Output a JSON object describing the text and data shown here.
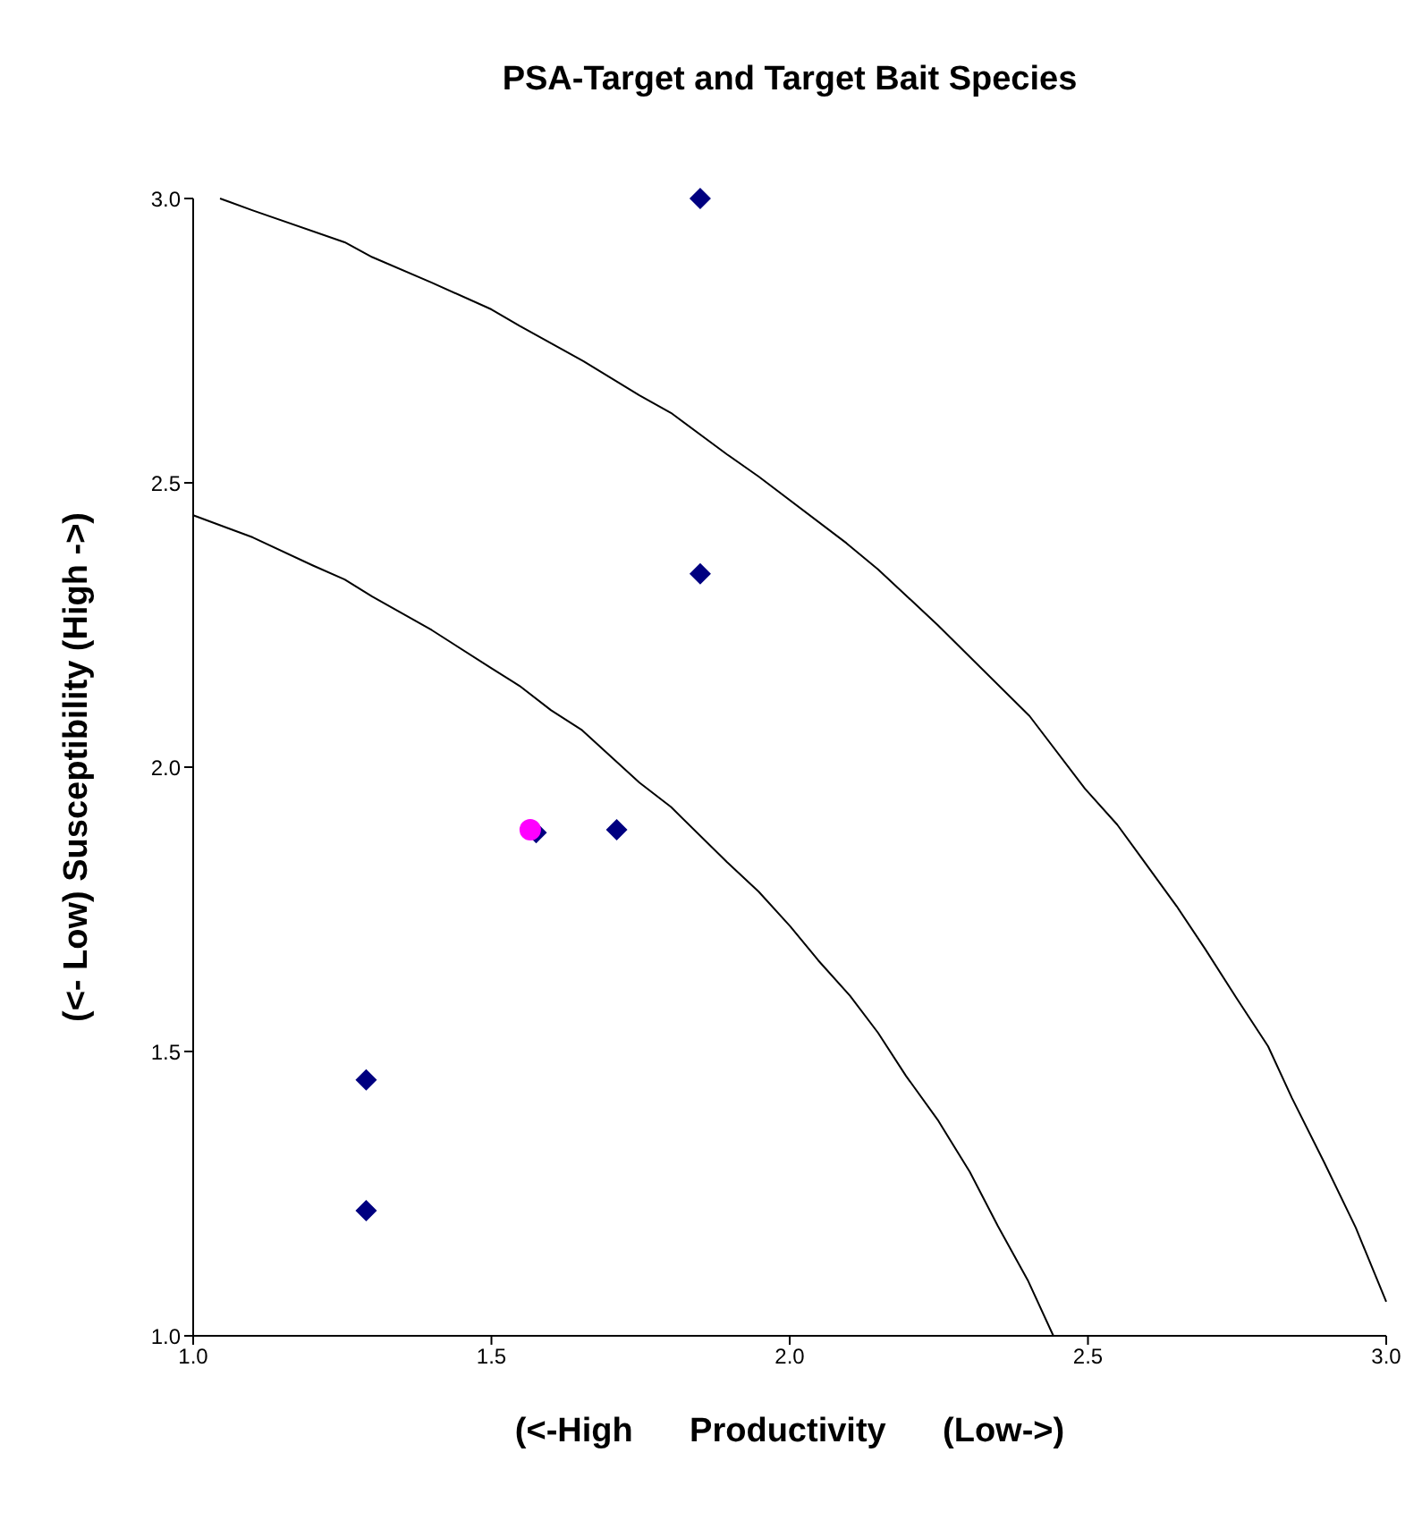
{
  "chart_data": {
    "type": "scatter",
    "title": "PSA-Target and Target Bait Species",
    "xlabel": "(<-High      Productivity      (Low->)",
    "ylabel": "(<- Low) Susceptibility (High ->)",
    "xlim": [
      1.0,
      3.0
    ],
    "ylim": [
      1.0,
      3.0
    ],
    "xticks": [
      {
        "value": 1.0,
        "label": "1.0"
      },
      {
        "value": 1.5,
        "label": "1.5"
      },
      {
        "value": 2.0,
        "label": "2.0"
      },
      {
        "value": 2.5,
        "label": "2.5"
      },
      {
        "value": 3.0,
        "label": "3.0"
      }
    ],
    "yticks": [
      {
        "value": 1.0,
        "label": "1.0"
      },
      {
        "value": 1.5,
        "label": "1.5"
      },
      {
        "value": 2.0,
        "label": "2.0"
      },
      {
        "value": 2.5,
        "label": "2.5"
      },
      {
        "value": 3.0,
        "label": "3.0"
      }
    ],
    "grid": false,
    "legend": false,
    "series": [
      {
        "type": "line",
        "marker": "none",
        "color": "#000000",
        "x": [
          1.045,
          1.1,
          1.254,
          1.3,
          1.4,
          1.5,
          1.547,
          1.654,
          1.748,
          1.801,
          1.895,
          1.948,
          2.095,
          2.148,
          2.195,
          2.248,
          2.402,
          2.495,
          2.549,
          2.649,
          2.696,
          2.749,
          2.802,
          2.842,
          2.896,
          2.949,
          3.0
        ],
        "values": [
          3.0,
          2.979,
          2.923,
          2.897,
          2.852,
          2.805,
          2.776,
          2.714,
          2.654,
          2.623,
          2.55,
          2.511,
          2.394,
          2.348,
          2.302,
          2.25,
          2.09,
          1.962,
          1.899,
          1.755,
          1.681,
          1.594,
          1.509,
          1.418,
          1.305,
          1.19,
          1.06
        ]
      },
      {
        "type": "line",
        "marker": "none",
        "color": "#000000",
        "x": [
          1.0,
          1.1,
          1.2,
          1.254,
          1.3,
          1.4,
          1.5,
          1.547,
          1.6,
          1.652,
          1.748,
          1.801,
          1.895,
          1.948,
          2.001,
          2.048,
          2.101,
          2.148,
          2.195,
          2.248,
          2.302,
          2.349,
          2.399,
          2.442
        ],
        "values": [
          2.443,
          2.404,
          2.355,
          2.33,
          2.3,
          2.241,
          2.174,
          2.143,
          2.1,
          2.065,
          1.973,
          1.93,
          1.833,
          1.781,
          1.72,
          1.66,
          1.598,
          1.533,
          1.457,
          1.38,
          1.288,
          1.193,
          1.098,
          1.0
        ]
      },
      {
        "type": "scatter",
        "marker": "diamond",
        "color": "#000080",
        "x": [
          1.85,
          1.85,
          1.71,
          1.575,
          1.29,
          1.29
        ],
        "values": [
          3.0,
          2.34,
          1.89,
          1.885,
          1.45,
          1.22
        ]
      },
      {
        "type": "scatter",
        "marker": "circle",
        "color": "#ff00ff",
        "x": [
          1.565
        ],
        "values": [
          1.89
        ]
      }
    ]
  }
}
